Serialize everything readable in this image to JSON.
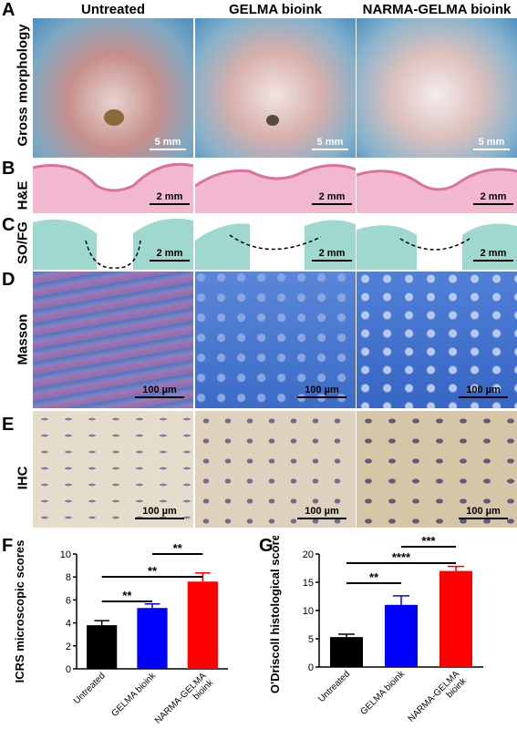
{
  "headers": [
    "Untreated",
    "GELMA bioink",
    "NARMA-GELMA bioink"
  ],
  "rows": [
    {
      "letter": "A",
      "label": "Gross morphology",
      "scale": "5 mm"
    },
    {
      "letter": "B",
      "label": "H&E",
      "scale": "2 mm"
    },
    {
      "letter": "C",
      "label": "SO/FG",
      "scale": "2 mm"
    },
    {
      "letter": "D",
      "label": "Masson",
      "scale": "100 µm"
    },
    {
      "letter": "E",
      "label": "IHC",
      "scale": "100 µm"
    }
  ],
  "chart_data": [
    {
      "panel": "F",
      "type": "bar",
      "categories": [
        "Untreated",
        "GELMA bioink",
        "NARMA-GELMA bioink"
      ],
      "values": [
        3.8,
        5.3,
        7.6
      ],
      "errors": [
        0.4,
        0.35,
        0.75
      ],
      "colors": [
        "#000000",
        "#0000ff",
        "#ff0000"
      ],
      "ylabel": "ICRS microscopic scores",
      "ylim": [
        0,
        10
      ],
      "yticks": [
        0,
        2,
        4,
        6,
        8,
        10
      ],
      "significance": [
        {
          "from": 0,
          "to": 1,
          "label": "**"
        },
        {
          "from": 0,
          "to": 2,
          "label": "**"
        },
        {
          "from": 1,
          "to": 2,
          "label": "**"
        }
      ]
    },
    {
      "panel": "G",
      "type": "bar",
      "categories": [
        "Untreated",
        "GELMA bioink",
        "NARMA-GELMA bioink"
      ],
      "values": [
        5.3,
        11.0,
        17.0
      ],
      "errors": [
        0.5,
        1.6,
        0.8
      ],
      "colors": [
        "#000000",
        "#0000ff",
        "#ff0000"
      ],
      "ylabel": "O'Driscoll histological scores",
      "ylim": [
        0,
        20
      ],
      "yticks": [
        0,
        5,
        10,
        15,
        20
      ],
      "significance": [
        {
          "from": 0,
          "to": 1,
          "label": "**"
        },
        {
          "from": 0,
          "to": 2,
          "label": "****"
        },
        {
          "from": 1,
          "to": 2,
          "label": "***"
        }
      ]
    }
  ]
}
